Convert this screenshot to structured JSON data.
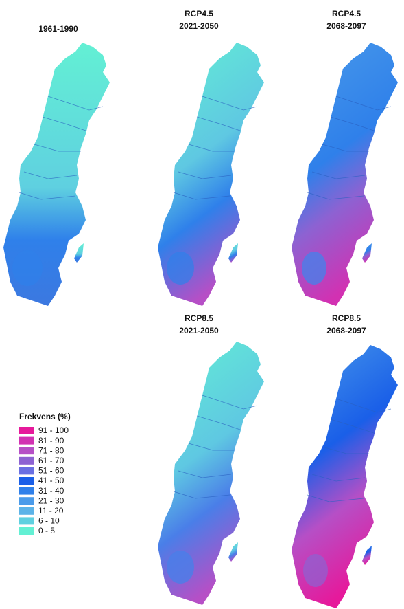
{
  "panels": [
    {
      "title": [
        "1961-1990"
      ]
    },
    {
      "title": [
        "RCP4.5",
        "2021-2050"
      ]
    },
    {
      "title": [
        "RCP4.5",
        "2068-2097"
      ]
    },
    {
      "title": [
        "RCP8.5",
        "2021-2050"
      ]
    },
    {
      "title": [
        "RCP8.5",
        "2068-2097"
      ]
    }
  ],
  "legend": {
    "title": "Frekvens (%)",
    "items": [
      {
        "label": "91 - 100",
        "color": "#e6199b"
      },
      {
        "label": "81 - 90",
        "color": "#d231b2"
      },
      {
        "label": "71 - 80",
        "color": "#b64fc6"
      },
      {
        "label": "61 - 70",
        "color": "#8d62d2"
      },
      {
        "label": "51 - 60",
        "color": "#6a6fe2"
      },
      {
        "label": "41 - 50",
        "color": "#1a5fe8"
      },
      {
        "label": "31 - 40",
        "color": "#2f80ea"
      },
      {
        "label": "21 - 30",
        "color": "#4a9bea"
      },
      {
        "label": "11 - 20",
        "color": "#5cb3e8"
      },
      {
        "label": "6 - 10",
        "color": "#5fd0e0"
      },
      {
        "label": "0 - 5",
        "color": "#63f0d4"
      }
    ]
  }
}
